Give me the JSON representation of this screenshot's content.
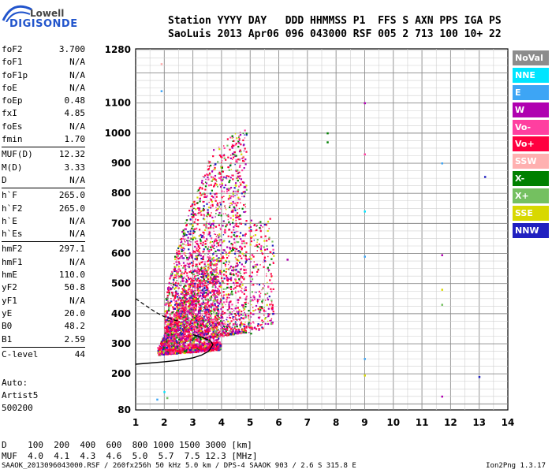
{
  "logo": {
    "top": "Lowell",
    "main": "DIGISONDE"
  },
  "header": {
    "line1": "Station YYYY DAY   DDD HHMMSS P1  FFS S AXN PPS IGA PS",
    "line2": "SaoLuis 2013 Apr06 096 043000 RSF 005 2 713 100 10+ 22"
  },
  "params": [
    {
      "label": "foF2",
      "value": "3.700"
    },
    {
      "label": "foF1",
      "value": "N/A"
    },
    {
      "label": "foF1p",
      "value": "N/A"
    },
    {
      "label": "foE",
      "value": "N/A"
    },
    {
      "label": "foEp",
      "value": "0.48"
    },
    {
      "label": "fxI",
      "value": "4.85"
    },
    {
      "label": "foEs",
      "value": "N/A"
    },
    {
      "label": "fmin",
      "value": "1.70"
    },
    {
      "label": "MUF(D)",
      "value": "12.32"
    },
    {
      "label": "M(D)",
      "value": "3.33"
    },
    {
      "label": "D",
      "value": "N/A"
    },
    {
      "label": "h`F",
      "value": "265.0"
    },
    {
      "label": "h`F2",
      "value": "265.0"
    },
    {
      "label": "h`E",
      "value": "N/A"
    },
    {
      "label": "h`Es",
      "value": "N/A"
    },
    {
      "label": "hmF2",
      "value": "297.1"
    },
    {
      "label": "hmF1",
      "value": "N/A"
    },
    {
      "label": "hmE",
      "value": "110.0"
    },
    {
      "label": "yF2",
      "value": "50.8"
    },
    {
      "label": "yF1",
      "value": "N/A"
    },
    {
      "label": "yE",
      "value": "20.0"
    },
    {
      "label": "B0",
      "value": "48.2"
    },
    {
      "label": "B1",
      "value": "2.59"
    },
    {
      "label": "C-level",
      "value": "44"
    }
  ],
  "auto": [
    "Auto:",
    "Artist5",
    "500200"
  ],
  "dmuf": {
    "line1": "D    100  200  400  600  800 1000 1500 3000 [km]",
    "line2": "MUF  4.0  4.1  4.3  4.6  5.0  5.7  7.5 12.3 [MHz]"
  },
  "footer": {
    "left": "SAAOK_2013096043000.RSF / 260fx256h 50 kHz 5.0 km / DPS-4 SAAOK 903 / 2.6 S 315.8 E",
    "right": "Ion2Png 1.3.17"
  },
  "legend": [
    {
      "label": "NoVal",
      "color": "#8c8c8c"
    },
    {
      "label": "NNE",
      "color": "#00e5ff"
    },
    {
      "label": "E",
      "color": "#3da5f5"
    },
    {
      "label": "W",
      "color": "#b000b0"
    },
    {
      "label": "Vo-",
      "color": "#ff3fa0"
    },
    {
      "label": "Vo+",
      "color": "#ff0040"
    },
    {
      "label": "SSW",
      "color": "#ffb0b0"
    },
    {
      "label": "X-",
      "color": "#008000"
    },
    {
      "label": "X+",
      "color": "#74c060"
    },
    {
      "label": "SSE",
      "color": "#d8d800"
    },
    {
      "label": "NNW",
      "color": "#2020c0"
    }
  ],
  "chart_data": {
    "type": "scatter",
    "xlim": [
      1,
      14
    ],
    "ylim": [
      80,
      1280
    ],
    "x_ticks": [
      "1",
      "2",
      "3",
      "4",
      "5",
      "6",
      "7",
      "8",
      "9",
      "10",
      "11",
      "12",
      "13",
      "14"
    ],
    "y_ticks": [
      "80",
      "200",
      "300",
      "400",
      "500",
      "600",
      "700",
      "800",
      "900",
      "1000",
      "1100",
      "1280"
    ],
    "grid": true,
    "profile_curve": {
      "x": [
        1.0,
        1.5,
        2.0,
        2.5,
        3.0,
        3.3,
        3.55,
        3.7,
        3.6,
        3.3,
        3.0
      ],
      "y": [
        232,
        236,
        240,
        245,
        253,
        262,
        275,
        297,
        310,
        322,
        330
      ]
    },
    "dashed_curve": {
      "x": [
        1.0,
        1.3,
        1.7,
        2.0,
        2.3,
        2.5
      ],
      "y": [
        450,
        430,
        405,
        390,
        380,
        375
      ]
    },
    "trace_regions": [
      {
        "fmin": 1.8,
        "fmax": 3.9,
        "hmin": 268,
        "hmax": 600
      },
      {
        "fmin": 2.0,
        "fmax": 4.85,
        "hmin": 300,
        "hmax": 1180
      },
      {
        "fmin": 4.9,
        "fmax": 5.8,
        "hmin": 330,
        "hmax": 720
      }
    ],
    "isolated_points": [
      {
        "x": 7.7,
        "y": 1000,
        "series": "X-"
      },
      {
        "x": 7.7,
        "y": 970,
        "series": "X-"
      },
      {
        "x": 9.0,
        "y": 1100,
        "series": "W"
      },
      {
        "x": 9.0,
        "y": 930,
        "series": "Vo-"
      },
      {
        "x": 9.0,
        "y": 740,
        "series": "NNE"
      },
      {
        "x": 9.0,
        "y": 590,
        "series": "E"
      },
      {
        "x": 9.0,
        "y": 250,
        "series": "E"
      },
      {
        "x": 9.0,
        "y": 195,
        "series": "SSE"
      },
      {
        "x": 11.7,
        "y": 595,
        "series": "W"
      },
      {
        "x": 11.7,
        "y": 480,
        "series": "SSE"
      },
      {
        "x": 11.7,
        "y": 430,
        "series": "X+"
      },
      {
        "x": 11.7,
        "y": 900,
        "series": "E"
      },
      {
        "x": 11.7,
        "y": 125,
        "series": "W"
      },
      {
        "x": 13.2,
        "y": 855,
        "series": "NNW"
      },
      {
        "x": 13.0,
        "y": 190,
        "series": "NNW"
      },
      {
        "x": 6.3,
        "y": 580,
        "series": "W"
      },
      {
        "x": 1.9,
        "y": 1140,
        "series": "E"
      },
      {
        "x": 1.9,
        "y": 1230,
        "series": "SSW"
      },
      {
        "x": 1.75,
        "y": 115,
        "series": "E"
      },
      {
        "x": 2.0,
        "y": 140,
        "series": "NNE"
      },
      {
        "x": 2.1,
        "y": 120,
        "series": "X+"
      }
    ]
  }
}
